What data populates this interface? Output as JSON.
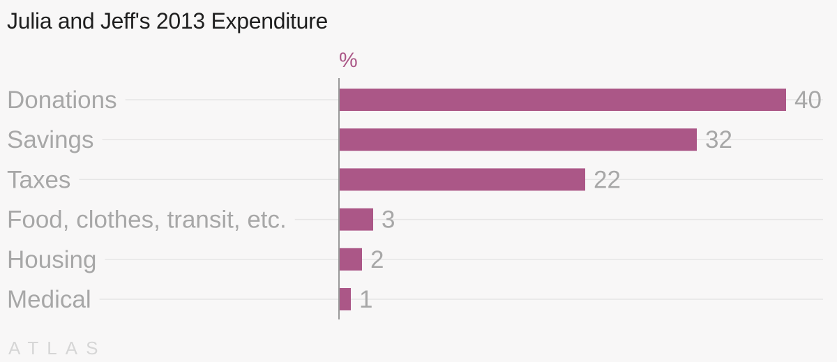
{
  "header": {
    "title": "Julia and Jeff's 2013 Expenditure"
  },
  "footer": {
    "brand": "ATLAS"
  },
  "colors": {
    "bar": "#ab5787",
    "unit": "#ab5787",
    "label": "#a7a7a7",
    "grid": "#e6e6e6",
    "axis": "#999999"
  },
  "chart_data": {
    "type": "bar",
    "orientation": "horizontal",
    "title": "Julia and Jeff's 2013 Expenditure",
    "unit": "%",
    "categories": [
      "Donations",
      "Savings",
      "Taxes",
      "Food, clothes, transit, etc.",
      "Housing",
      "Medical"
    ],
    "values": [
      40,
      32,
      22,
      3,
      2,
      1
    ],
    "xlim": [
      0,
      40
    ],
    "grid": true,
    "legend": "none"
  }
}
